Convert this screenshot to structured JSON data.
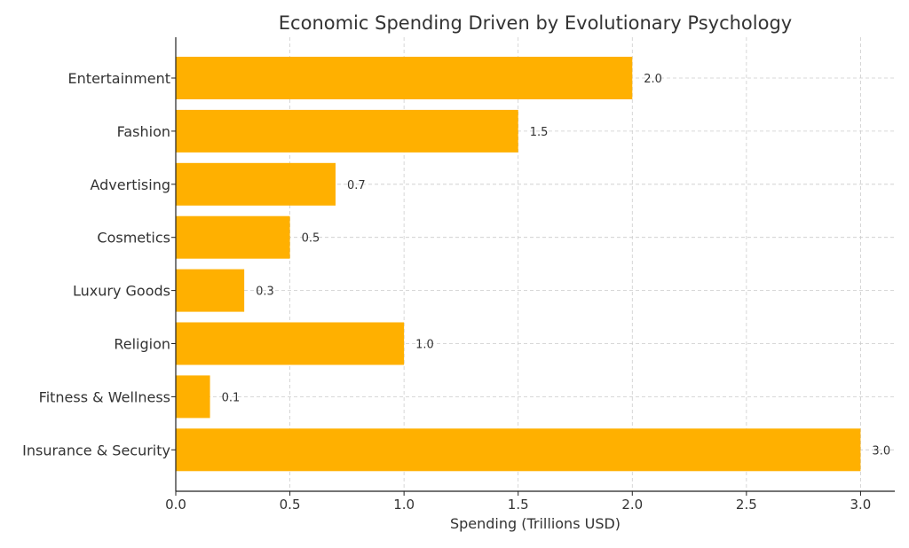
{
  "chart_data": {
    "type": "bar",
    "orientation": "horizontal",
    "title": "Economic Spending Driven by Evolutionary Psychology",
    "xlabel": "Spending (Trillions USD)",
    "ylabel": "",
    "categories": [
      "Entertainment",
      "Fashion",
      "Advertising",
      "Cosmetics",
      "Luxury Goods",
      "Religion",
      "Fitness & Wellness",
      "Insurance & Security"
    ],
    "values": [
      2.0,
      1.5,
      0.7,
      0.5,
      0.3,
      1.0,
      0.15,
      3.0
    ],
    "data_labels": [
      "2.0",
      "1.5",
      "0.7",
      "0.5",
      "0.3",
      "1.0",
      "0.1",
      "3.0"
    ],
    "xlim": [
      0,
      3.15
    ],
    "xticks": [
      0.0,
      0.5,
      1.0,
      1.5,
      2.0,
      2.5,
      3.0
    ],
    "xtick_labels": [
      "0.0",
      "0.5",
      "1.0",
      "1.5",
      "2.0",
      "2.5",
      "3.0"
    ],
    "grid": true,
    "bar_color": "#FFB000"
  }
}
